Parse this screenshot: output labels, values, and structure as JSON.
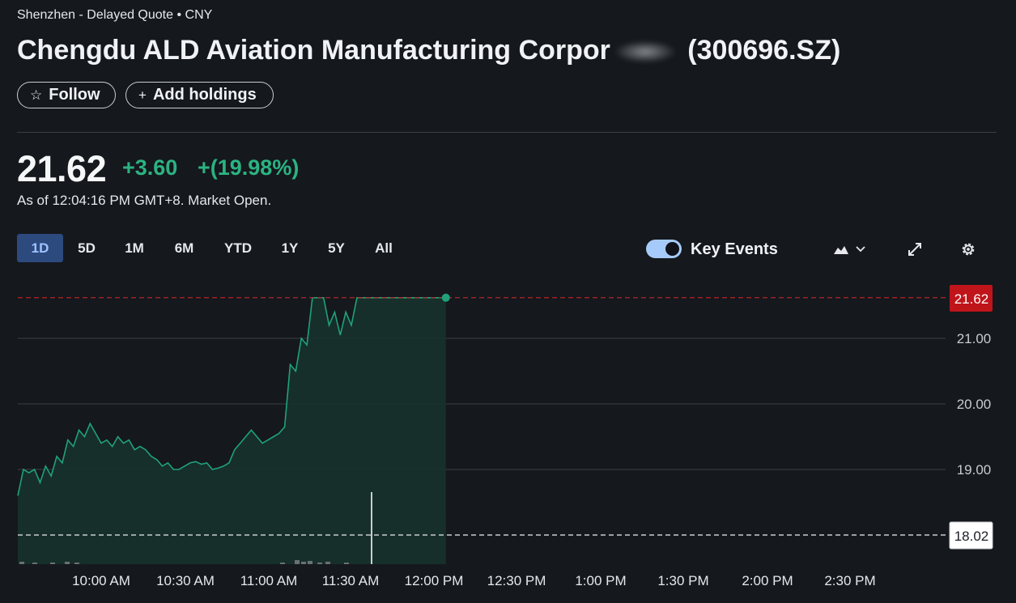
{
  "header": {
    "exchange": "Shenzhen - Delayed Quote • CNY",
    "title_visible": "Chengdu ALD Aviation Manufacturing Corpor",
    "ticker": "(300696.SZ)",
    "follow_label": "Follow",
    "add_holdings_label": "Add holdings"
  },
  "quote": {
    "price": "21.62",
    "change": "+3.60",
    "change_pct": "+(19.98%)",
    "as_of": "As of 12:04:16 PM GMT+8. Market Open.",
    "change_color": "#2bb381"
  },
  "ranges": [
    "1D",
    "5D",
    "1M",
    "6M",
    "YTD",
    "1Y",
    "5Y",
    "All"
  ],
  "active_range": "1D",
  "controls": {
    "key_events_label": "Key Events",
    "key_events_on": true,
    "icons": [
      "area-chart-icon",
      "chevron-down-icon",
      "expand-icon",
      "gear-icon"
    ]
  },
  "chart_data": {
    "type": "area",
    "y_ticks": [
      "21.00",
      "20.00",
      "19.00"
    ],
    "x_ticks": [
      "10:00 AM",
      "10:30 AM",
      "11:00 AM",
      "11:30 AM",
      "12:00 PM",
      "12:30 PM",
      "1:00 PM",
      "1:30 PM",
      "2:00 PM",
      "2:30 PM"
    ],
    "ylim": [
      17.6,
      22.2
    ],
    "current_price_label": "21.62",
    "prev_close_label": "18.02",
    "current_price": 21.62,
    "prev_close": 18.02,
    "series_color": "#1fa27a",
    "current_label_color": "#c0141b",
    "series": [
      {
        "t": "09:30",
        "v": 18.6
      },
      {
        "t": "09:32",
        "v": 19.0
      },
      {
        "t": "09:34",
        "v": 18.95
      },
      {
        "t": "09:36",
        "v": 19.0
      },
      {
        "t": "09:38",
        "v": 18.8
      },
      {
        "t": "09:40",
        "v": 19.05
      },
      {
        "t": "09:42",
        "v": 18.9
      },
      {
        "t": "09:44",
        "v": 19.2
      },
      {
        "t": "09:46",
        "v": 19.1
      },
      {
        "t": "09:48",
        "v": 19.45
      },
      {
        "t": "09:50",
        "v": 19.35
      },
      {
        "t": "09:52",
        "v": 19.6
      },
      {
        "t": "09:54",
        "v": 19.5
      },
      {
        "t": "09:56",
        "v": 19.7
      },
      {
        "t": "09:58",
        "v": 19.55
      },
      {
        "t": "10:00",
        "v": 19.4
      },
      {
        "t": "10:02",
        "v": 19.45
      },
      {
        "t": "10:04",
        "v": 19.35
      },
      {
        "t": "10:06",
        "v": 19.5
      },
      {
        "t": "10:08",
        "v": 19.4
      },
      {
        "t": "10:10",
        "v": 19.45
      },
      {
        "t": "10:12",
        "v": 19.3
      },
      {
        "t": "10:14",
        "v": 19.35
      },
      {
        "t": "10:16",
        "v": 19.3
      },
      {
        "t": "10:18",
        "v": 19.2
      },
      {
        "t": "10:20",
        "v": 19.15
      },
      {
        "t": "10:22",
        "v": 19.05
      },
      {
        "t": "10:24",
        "v": 19.1
      },
      {
        "t": "10:26",
        "v": 19.0
      },
      {
        "t": "10:28",
        "v": 19.0
      },
      {
        "t": "10:30",
        "v": 19.05
      },
      {
        "t": "10:32",
        "v": 19.1
      },
      {
        "t": "10:34",
        "v": 19.12
      },
      {
        "t": "10:36",
        "v": 19.08
      },
      {
        "t": "10:38",
        "v": 19.1
      },
      {
        "t": "10:40",
        "v": 19.0
      },
      {
        "t": "10:42",
        "v": 19.02
      },
      {
        "t": "10:44",
        "v": 19.05
      },
      {
        "t": "10:46",
        "v": 19.1
      },
      {
        "t": "10:48",
        "v": 19.3
      },
      {
        "t": "10:50",
        "v": 19.4
      },
      {
        "t": "10:52",
        "v": 19.5
      },
      {
        "t": "10:54",
        "v": 19.6
      },
      {
        "t": "10:56",
        "v": 19.5
      },
      {
        "t": "10:58",
        "v": 19.4
      },
      {
        "t": "11:00",
        "v": 19.45
      },
      {
        "t": "11:02",
        "v": 19.5
      },
      {
        "t": "11:04",
        "v": 19.55
      },
      {
        "t": "11:06",
        "v": 19.65
      },
      {
        "t": "11:08",
        "v": 20.6
      },
      {
        "t": "11:10",
        "v": 20.5
      },
      {
        "t": "11:12",
        "v": 21.0
      },
      {
        "t": "11:14",
        "v": 20.9
      },
      {
        "t": "11:16",
        "v": 21.62
      },
      {
        "t": "11:18",
        "v": 21.62
      },
      {
        "t": "11:20",
        "v": 21.62
      },
      {
        "t": "11:22",
        "v": 21.2
      },
      {
        "t": "11:24",
        "v": 21.4
      },
      {
        "t": "11:26",
        "v": 21.05
      },
      {
        "t": "11:28",
        "v": 21.4
      },
      {
        "t": "11:30",
        "v": 21.2
      },
      {
        "t": "11:32",
        "v": 21.62
      },
      {
        "t": "11:34",
        "v": 21.62
      },
      {
        "t": "11:40",
        "v": 21.62
      },
      {
        "t": "11:50",
        "v": 21.62
      },
      {
        "t": "12:00",
        "v": 21.62
      },
      {
        "t": "12:04",
        "v": 21.62
      }
    ]
  }
}
